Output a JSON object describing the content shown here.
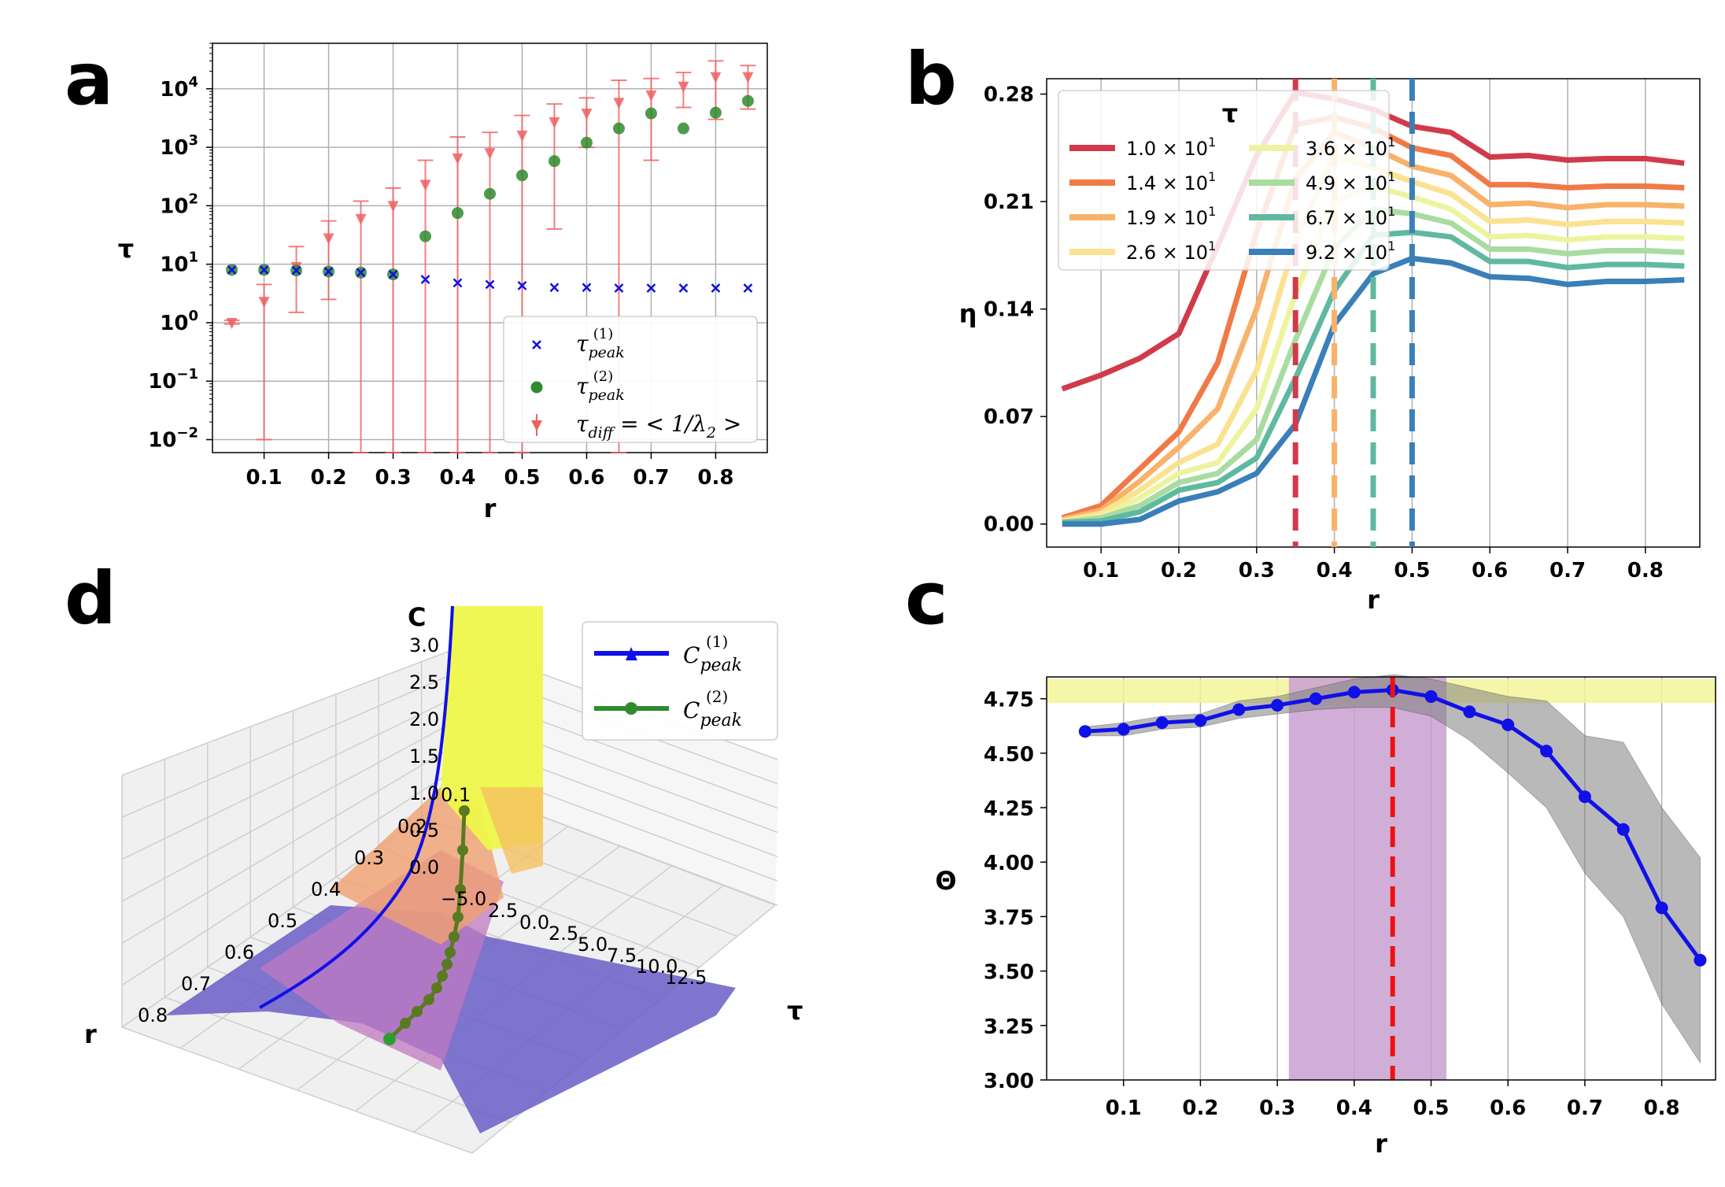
{
  "chart_data": [
    {
      "panel": "a",
      "type": "scatter",
      "ylabel": "τ",
      "xlabel": "r",
      "yscale": "log",
      "ylim": [
        0.006,
        60000
      ],
      "xlim": [
        0.02,
        0.88
      ],
      "xticks": [
        "0.1",
        "0.2",
        "0.3",
        "0.4",
        "0.5",
        "0.6",
        "0.7",
        "0.8"
      ],
      "yticks": [
        {
          "base": "10",
          "exp": "−2",
          "value": 0.01
        },
        {
          "base": "10",
          "exp": "−1",
          "value": 0.1
        },
        {
          "base": "10",
          "exp": "0",
          "value": 1
        },
        {
          "base": "10",
          "exp": "1",
          "value": 10
        },
        {
          "base": "10",
          "exp": "2",
          "value": 100
        },
        {
          "base": "10",
          "exp": "3",
          "value": 1000
        },
        {
          "base": "10",
          "exp": "4",
          "value": 10000
        }
      ],
      "legend": [
        {
          "symbol": "τ",
          "sub": "peak",
          "sup": "(1)"
        },
        {
          "symbol": "τ",
          "sub": "peak",
          "sup": "(2)"
        },
        {
          "symbol": "τ",
          "sub": "diff",
          "rest": " = < 1/λ",
          "sub2": "2",
          "end": " >"
        }
      ],
      "series": [
        {
          "name": "tau_peak_1",
          "color": "#1010e0",
          "x": [
            0.05,
            0.1,
            0.15,
            0.2,
            0.25,
            0.3,
            0.35,
            0.4,
            0.45,
            0.5,
            0.55,
            0.6,
            0.65,
            0.7,
            0.75,
            0.8,
            0.85
          ],
          "y": [
            8,
            8,
            7.8,
            7.5,
            7.2,
            6.7,
            5.5,
            4.8,
            4.5,
            4.3,
            4.0,
            4.0,
            3.9,
            3.9,
            3.9,
            3.9,
            3.9
          ]
        },
        {
          "name": "tau_peak_2",
          "color": "#2e8b2e",
          "x": [
            0.05,
            0.1,
            0.15,
            0.2,
            0.25,
            0.3,
            0.35,
            0.4,
            0.45,
            0.5,
            0.55,
            0.6,
            0.65,
            0.7,
            0.75,
            0.8,
            0.85
          ],
          "y": [
            8,
            8,
            7.8,
            7.5,
            7.2,
            6.7,
            30,
            75,
            160,
            330,
            580,
            1200,
            2100,
            3800,
            2100,
            3900,
            6200
          ]
        },
        {
          "name": "tau_diff",
          "color": "#f06060",
          "x": [
            0.05,
            0.1,
            0.15,
            0.2,
            0.25,
            0.3,
            0.35,
            0.4,
            0.45,
            0.5,
            0.55,
            0.6,
            0.65,
            0.7,
            0.75,
            0.8,
            0.85
          ],
          "y": [
            1.0,
            2.3,
            9,
            28,
            60,
            100,
            230,
            650,
            800,
            1600,
            2700,
            3800,
            5800,
            7800,
            11000,
            16000,
            16000
          ],
          "lo": [
            0.95,
            0.01,
            1.5,
            2.5,
            0.006,
            0.006,
            0.006,
            0.006,
            0.006,
            0.006,
            40,
            1000,
            0.006,
            600,
            4800,
            3000,
            4500
          ],
          "hi": [
            1.1,
            4.5,
            20,
            55,
            120,
            200,
            600,
            1500,
            1800,
            3500,
            5500,
            7000,
            14000,
            15000,
            19000,
            30000,
            25000
          ]
        }
      ]
    },
    {
      "panel": "b",
      "type": "line",
      "ylabel": "η",
      "xlabel": "r",
      "ylim": [
        -0.015,
        0.29
      ],
      "xlim": [
        0.03,
        0.87
      ],
      "xticks": [
        "0.1",
        "0.2",
        "0.3",
        "0.4",
        "0.5",
        "0.6",
        "0.7",
        "0.8"
      ],
      "yticks": [
        "0.00",
        "0.07",
        "0.14",
        "0.21",
        "0.28"
      ],
      "legend_title": "τ",
      "x": [
        0.05,
        0.1,
        0.15,
        0.2,
        0.25,
        0.3,
        0.35,
        0.4,
        0.45,
        0.5,
        0.55,
        0.6,
        0.65,
        0.7,
        0.75,
        0.8,
        0.85
      ],
      "series": [
        {
          "label": "1.0 × 10",
          "exp": "1",
          "color": "#d13a4a",
          "values": [
            0.088,
            0.097,
            0.108,
            0.124,
            0.181,
            0.24,
            0.281,
            0.277,
            0.27,
            0.259,
            0.255,
            0.239,
            0.24,
            0.237,
            0.238,
            0.238,
            0.235
          ],
          "vline": 0.35
        },
        {
          "label": "1.4 × 10",
          "exp": "1",
          "color": "#f07a46",
          "values": [
            0.004,
            0.012,
            0.036,
            0.06,
            0.105,
            0.19,
            0.26,
            0.265,
            0.258,
            0.245,
            0.24,
            0.221,
            0.221,
            0.219,
            0.22,
            0.22,
            0.219
          ]
        },
        {
          "label": "1.9 × 10",
          "exp": "1",
          "color": "#f8b26a",
          "values": [
            0.003,
            0.009,
            0.028,
            0.05,
            0.075,
            0.14,
            0.225,
            0.255,
            0.245,
            0.233,
            0.227,
            0.208,
            0.209,
            0.206,
            0.208,
            0.208,
            0.207
          ],
          "vline": 0.4
        },
        {
          "label": "2.6 × 10",
          "exp": "1",
          "color": "#fbe290",
          "values": [
            0.002,
            0.007,
            0.022,
            0.04,
            0.052,
            0.1,
            0.185,
            0.24,
            0.232,
            0.223,
            0.215,
            0.197,
            0.198,
            0.195,
            0.197,
            0.197,
            0.196
          ]
        },
        {
          "label": "3.6 × 10",
          "exp": "1",
          "color": "#edf4a0",
          "values": [
            0.001,
            0.005,
            0.017,
            0.033,
            0.04,
            0.075,
            0.15,
            0.21,
            0.22,
            0.213,
            0.205,
            0.187,
            0.188,
            0.185,
            0.187,
            0.187,
            0.186
          ]
        },
        {
          "label": "4.9 × 10",
          "exp": "1",
          "color": "#a9dca0",
          "values": [
            0.001,
            0.004,
            0.012,
            0.027,
            0.033,
            0.055,
            0.12,
            0.18,
            0.205,
            0.202,
            0.196,
            0.179,
            0.179,
            0.176,
            0.178,
            0.178,
            0.177
          ]
        },
        {
          "label": "6.7 × 10",
          "exp": "1",
          "color": "#5fb9a0",
          "values": [
            0.001,
            0.002,
            0.008,
            0.022,
            0.027,
            0.043,
            0.095,
            0.152,
            0.188,
            0.19,
            0.187,
            0.171,
            0.171,
            0.167,
            0.169,
            0.169,
            0.168
          ],
          "vline": 0.45
        },
        {
          "label": "9.2 × 10",
          "exp": "1",
          "color": "#3a7fb8",
          "values": [
            0.0,
            0.0,
            0.003,
            0.015,
            0.021,
            0.033,
            0.065,
            0.13,
            0.163,
            0.173,
            0.17,
            0.161,
            0.16,
            0.156,
            0.158,
            0.158,
            0.159
          ],
          "vline": 0.5
        }
      ]
    },
    {
      "panel": "c",
      "type": "line",
      "ylabel": "Θ",
      "xlabel": "r",
      "ylim": [
        3.0,
        4.85
      ],
      "xlim": [
        0.0,
        0.87
      ],
      "xticks": [
        "0.1",
        "0.2",
        "0.3",
        "0.4",
        "0.5",
        "0.6",
        "0.7",
        "0.8"
      ],
      "yticks": [
        "3.00",
        "3.25",
        "3.50",
        "3.75",
        "4.00",
        "4.25",
        "4.50",
        "4.75"
      ],
      "x": [
        0.05,
        0.1,
        0.15,
        0.2,
        0.25,
        0.3,
        0.35,
        0.4,
        0.45,
        0.5,
        0.55,
        0.6,
        0.65,
        0.7,
        0.75,
        0.8,
        0.85
      ],
      "values": [
        4.6,
        4.61,
        4.64,
        4.65,
        4.7,
        4.72,
        4.75,
        4.78,
        4.79,
        4.76,
        4.69,
        4.63,
        4.51,
        4.3,
        4.15,
        3.79,
        3.55
      ],
      "band_lo": [
        4.58,
        4.58,
        4.61,
        4.62,
        4.66,
        4.68,
        4.7,
        4.71,
        4.71,
        4.67,
        4.56,
        4.41,
        4.25,
        3.95,
        3.75,
        3.35,
        3.08
      ],
      "band_hi": [
        4.62,
        4.64,
        4.67,
        4.68,
        4.74,
        4.76,
        4.8,
        4.84,
        4.86,
        4.84,
        4.8,
        4.76,
        4.74,
        4.58,
        4.55,
        4.25,
        4.02
      ],
      "line_color": "#1010e8",
      "band_color": "#808080",
      "hband": [
        4.73,
        4.84
      ],
      "hband_color": "#f5f59a",
      "vband": [
        0.315,
        0.52
      ],
      "vband_color": "#c9a0d0",
      "vline": 0.45,
      "vline_color": "#ee1111"
    },
    {
      "panel": "d",
      "type": "surface",
      "zlabel": "C",
      "xlabel": "τ",
      "ylabel": "r",
      "z_ticks": [
        "0.0",
        "0.5",
        "1.0",
        "1.5",
        "2.0",
        "2.5",
        "3.0"
      ],
      "tau_ticks": [
        "0.0",
        "2.5",
        "5.0",
        "7.5",
        "10.0",
        "12.5"
      ],
      "r_ticks": [
        "0.8",
        "0.7",
        "0.6",
        "0.5",
        "0.4",
        "0.3",
        "0.2",
        "0.1"
      ],
      "legend": [
        {
          "symbol": "C",
          "sub": "peak",
          "sup": "(1)",
          "color": "#1010e8"
        },
        {
          "symbol": "C",
          "sub": "peak",
          "sup": "(2)",
          "color": "#2e8b2e"
        }
      ]
    }
  ],
  "panel_labels": {
    "a": "a",
    "b": "b",
    "c": "c",
    "d": "d"
  },
  "c_label_d": "C",
  "extra_3d_tick": "−5.0",
  "extra_3d_tick2": "2.5"
}
